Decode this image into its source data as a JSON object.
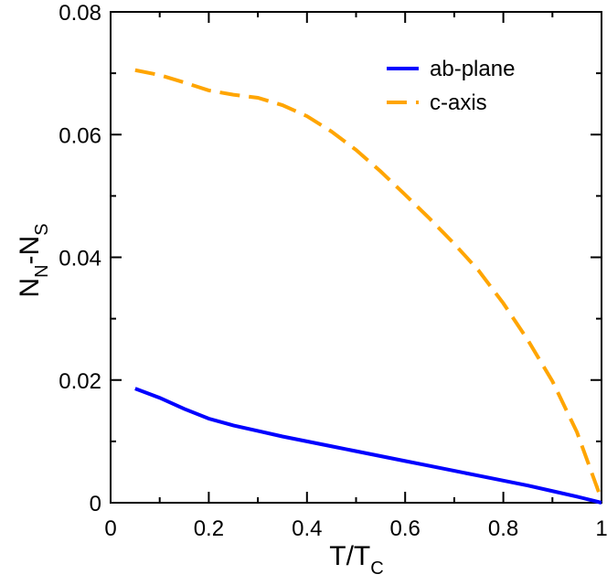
{
  "chart_data": {
    "type": "line",
    "x_label": "T/T",
    "x_label_sub": "C",
    "y_label_parts": [
      "N",
      "N",
      "-N",
      "S"
    ],
    "x": [
      0.05,
      0.1,
      0.15,
      0.2,
      0.25,
      0.3,
      0.35,
      0.4,
      0.45,
      0.5,
      0.55,
      0.6,
      0.65,
      0.7,
      0.75,
      0.8,
      0.85,
      0.9,
      0.95,
      1.0
    ],
    "series": [
      {
        "name": "ab-plane",
        "color": "#0000ff",
        "dash": false,
        "values": [
          0.0186,
          0.0171,
          0.0153,
          0.0137,
          0.0126,
          0.0117,
          0.0108,
          0.01,
          0.0092,
          0.0084,
          0.0076,
          0.0068,
          0.006,
          0.0052,
          0.0044,
          0.0036,
          0.0028,
          0.0019,
          0.001,
          0.0
        ]
      },
      {
        "name": "c-axis",
        "color": "#ffa500",
        "dash": true,
        "values": [
          0.0705,
          0.0697,
          0.0685,
          0.0672,
          0.0665,
          0.066,
          0.0648,
          0.063,
          0.0605,
          0.0575,
          0.054,
          0.0502,
          0.0463,
          0.0422,
          0.0378,
          0.0325,
          0.0265,
          0.0198,
          0.0115,
          0.0005
        ]
      }
    ],
    "xlim": [
      0,
      1
    ],
    "xticks": [
      0,
      0.2,
      0.4,
      0.6,
      0.8,
      1
    ],
    "xminorticks": [
      0.1,
      0.3,
      0.5,
      0.7,
      0.9
    ],
    "ylim": [
      0,
      0.08
    ],
    "yticks": [
      0,
      0.02,
      0.04,
      0.06,
      0.08
    ],
    "yminorticks": [
      0.01,
      0.03,
      0.05,
      0.07
    ],
    "legend": "upper right"
  }
}
